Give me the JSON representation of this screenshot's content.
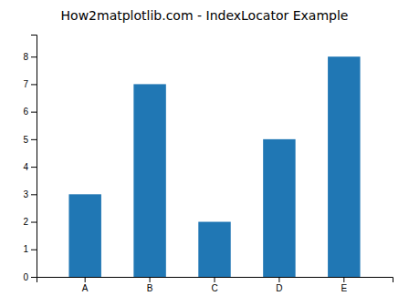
{
  "chart_data": {
    "type": "bar",
    "title": "How2matplotlib.com - IndexLocator Example",
    "categories": [
      "A",
      "B",
      "C",
      "D",
      "E"
    ],
    "values": [
      3,
      7,
      2,
      5,
      8
    ],
    "color": "#2077b4",
    "ylim": [
      0,
      8.8
    ],
    "yticks": [
      0,
      1,
      2,
      3,
      4,
      5,
      6,
      7,
      8
    ],
    "grid": false
  }
}
